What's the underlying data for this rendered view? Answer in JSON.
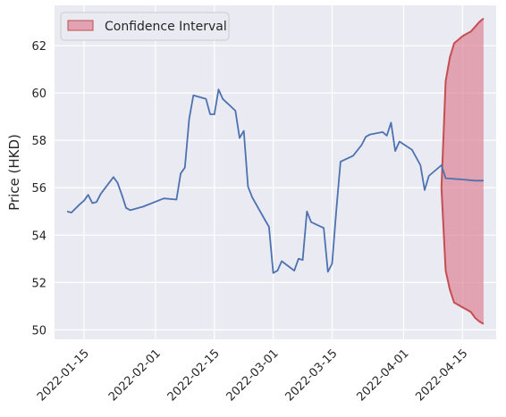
{
  "chart_data": {
    "type": "line",
    "ylabel": "Price (HKD)",
    "ylim": [
      49.6,
      63.7
    ],
    "y_ticks": [
      50,
      52,
      54,
      56,
      58,
      60,
      62
    ],
    "x_ticks": [
      "2022-01-15",
      "2022-02-01",
      "2022-02-15",
      "2022-03-01",
      "2022-03-15",
      "2022-04-01",
      "2022-04-15"
    ],
    "grid": true,
    "legend_position": "top-left",
    "legend": {
      "label": "Confidence Interval"
    },
    "series": [
      {
        "color": "#4c72b0",
        "points": [
          [
            "2022-01-11",
            55.0
          ],
          [
            "2022-01-12",
            54.95
          ],
          [
            "2022-01-14",
            55.3
          ],
          [
            "2022-01-15",
            55.45
          ],
          [
            "2022-01-16",
            55.7
          ],
          [
            "2022-01-17",
            55.35
          ],
          [
            "2022-01-18",
            55.4
          ],
          [
            "2022-01-19",
            55.75
          ],
          [
            "2022-01-22",
            56.45
          ],
          [
            "2022-01-23",
            56.2
          ],
          [
            "2022-01-24",
            55.7
          ],
          [
            "2022-01-25",
            55.15
          ],
          [
            "2022-01-26",
            55.05
          ],
          [
            "2022-01-29",
            55.2
          ],
          [
            "2022-02-03",
            55.55
          ],
          [
            "2022-02-06",
            55.5
          ],
          [
            "2022-02-07",
            56.6
          ],
          [
            "2022-02-08",
            56.85
          ],
          [
            "2022-02-09",
            58.9
          ],
          [
            "2022-02-10",
            59.9
          ],
          [
            "2022-02-13",
            59.75
          ],
          [
            "2022-02-14",
            59.1
          ],
          [
            "2022-02-15",
            59.1
          ],
          [
            "2022-02-16",
            60.15
          ],
          [
            "2022-02-17",
            59.75
          ],
          [
            "2022-02-20",
            59.25
          ],
          [
            "2022-02-21",
            58.1
          ],
          [
            "2022-02-22",
            58.4
          ],
          [
            "2022-02-23",
            56.05
          ],
          [
            "2022-02-24",
            55.6
          ],
          [
            "2022-02-27",
            54.65
          ],
          [
            "2022-02-28",
            54.35
          ],
          [
            "2022-03-01",
            52.4
          ],
          [
            "2022-03-02",
            52.5
          ],
          [
            "2022-03-03",
            52.9
          ],
          [
            "2022-03-06",
            52.5
          ],
          [
            "2022-03-07",
            53.0
          ],
          [
            "2022-03-08",
            52.95
          ],
          [
            "2022-03-09",
            55.0
          ],
          [
            "2022-03-10",
            54.55
          ],
          [
            "2022-03-13",
            54.3
          ],
          [
            "2022-03-14",
            52.45
          ],
          [
            "2022-03-15",
            52.8
          ],
          [
            "2022-03-16",
            55.05
          ],
          [
            "2022-03-17",
            57.1
          ],
          [
            "2022-03-20",
            57.35
          ],
          [
            "2022-03-22",
            57.8
          ],
          [
            "2022-03-23",
            58.15
          ],
          [
            "2022-03-24",
            58.25
          ],
          [
            "2022-03-27",
            58.35
          ],
          [
            "2022-03-28",
            58.2
          ],
          [
            "2022-03-29",
            58.75
          ],
          [
            "2022-03-30",
            57.55
          ],
          [
            "2022-03-31",
            57.95
          ],
          [
            "2022-04-03",
            57.6
          ],
          [
            "2022-04-05",
            56.95
          ],
          [
            "2022-04-06",
            55.9
          ],
          [
            "2022-04-07",
            56.5
          ],
          [
            "2022-04-10",
            56.95
          ],
          [
            "2022-04-11",
            56.4
          ],
          [
            "2022-04-15",
            56.35
          ],
          [
            "2022-04-18",
            56.3
          ],
          [
            "2022-04-20",
            56.3
          ]
        ]
      }
    ],
    "confidence_interval": {
      "color": "#dd8496",
      "x": [
        "2022-04-10",
        "2022-04-11",
        "2022-04-12",
        "2022-04-13",
        "2022-04-14",
        "2022-04-15",
        "2022-04-16",
        "2022-04-17",
        "2022-04-18",
        "2022-04-19",
        "2022-04-20"
      ],
      "upper": [
        56.0,
        60.5,
        61.5,
        62.1,
        62.25,
        62.4,
        62.5,
        62.6,
        62.8,
        63.0,
        63.15
      ],
      "lower": [
        56.0,
        52.5,
        51.7,
        51.15,
        51.05,
        50.95,
        50.85,
        50.75,
        50.5,
        50.35,
        50.25
      ]
    }
  }
}
